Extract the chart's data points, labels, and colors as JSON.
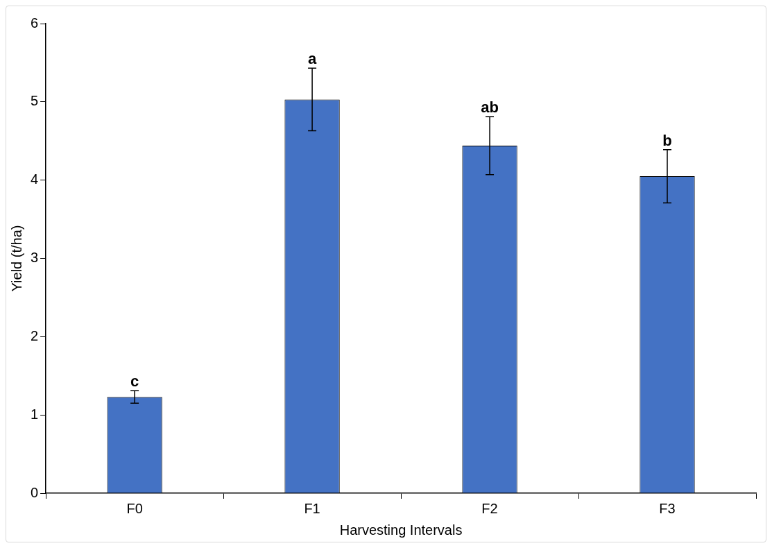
{
  "chart_data": {
    "type": "bar",
    "xlabel": "Harvesting Intervals",
    "ylabel": "Yield (t/ha)",
    "categories": [
      "F0",
      "F1",
      "F2",
      "F3"
    ],
    "values": [
      1.23,
      5.03,
      4.44,
      4.05
    ],
    "errors": [
      0.08,
      0.4,
      0.37,
      0.34
    ],
    "color": "#4472c4",
    "ylim": [
      0,
      6
    ],
    "yticks": [
      0,
      1,
      2,
      3,
      4,
      5,
      6
    ],
    "grid": false,
    "legend": false,
    "annotations": [
      {
        "text": "c",
        "x": "F0",
        "y": 1.31
      },
      {
        "text": "a",
        "x": "F1",
        "y": 5.43
      },
      {
        "text": "ab",
        "x": "F2",
        "y": 4.81
      },
      {
        "text": "b",
        "x": "F3",
        "y": 4.39
      }
    ]
  }
}
